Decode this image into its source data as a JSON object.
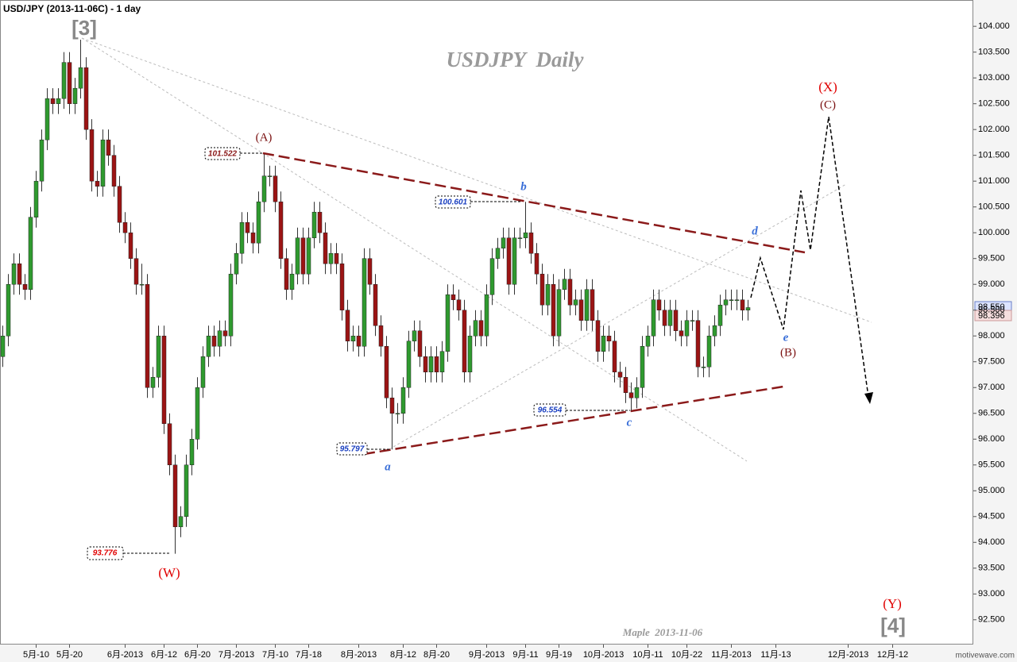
{
  "chart_data": {
    "type": "candlestick",
    "title": "USD/JPY (2013-11-06C) - 1 day",
    "watermark": "USDJPY  Daily",
    "signature": "Maple  2013-11-06",
    "brand": "motivewave.com",
    "up_color": "#2f9a2f",
    "down_color": "#9b1414",
    "xlim": [
      -0.5,
      174.5
    ],
    "xticks": [
      {
        "value": 6,
        "label": "5月-10"
      },
      {
        "value": 12,
        "label": "5月-20"
      },
      {
        "value": 22,
        "label": "6月-2013"
      },
      {
        "value": 29,
        "label": "6月-12"
      },
      {
        "value": 35,
        "label": "6月-20"
      },
      {
        "value": 42,
        "label": "7月-2013"
      },
      {
        "value": 49,
        "label": "7月-10"
      },
      {
        "value": 55,
        "label": "7月-18"
      },
      {
        "value": 64,
        "label": "8月-2013"
      },
      {
        "value": 72,
        "label": "8月-12"
      },
      {
        "value": 78,
        "label": "8月-20"
      },
      {
        "value": 87,
        "label": "9月-2013"
      },
      {
        "value": 94,
        "label": "9月-11"
      },
      {
        "value": 100,
        "label": "9月-19"
      },
      {
        "value": 108,
        "label": "10月-2013"
      },
      {
        "value": 116,
        "label": "10月-11"
      },
      {
        "value": 123,
        "label": "10月-22"
      },
      {
        "value": 131,
        "label": "11月-2013"
      },
      {
        "value": 139,
        "label": "11月-13"
      },
      {
        "value": 152,
        "label": "12月-2013"
      },
      {
        "value": 160,
        "label": "12月-12"
      }
    ],
    "ylim": [
      92.02,
      104.51
    ],
    "yticks": [
      {
        "value": 92.5,
        "label": "92.500"
      },
      {
        "value": 93,
        "label": "93.000"
      },
      {
        "value": 93.5,
        "label": "93.500"
      },
      {
        "value": 94,
        "label": "94.000"
      },
      {
        "value": 94.5,
        "label": "94.500"
      },
      {
        "value": 95,
        "label": "95.000"
      },
      {
        "value": 95.5,
        "label": "95.500"
      },
      {
        "value": 96,
        "label": "96.000"
      },
      {
        "value": 96.5,
        "label": "96.500"
      },
      {
        "value": 97,
        "label": "97.000"
      },
      {
        "value": 97.5,
        "label": "97.500"
      },
      {
        "value": 98,
        "label": "98.000"
      },
      {
        "value": 98.5,
        "label": "98.500"
      },
      {
        "value": 99,
        "label": "99.000"
      },
      {
        "value": 99.5,
        "label": "99.500"
      },
      {
        "value": 100,
        "label": "100.000"
      },
      {
        "value": 100.5,
        "label": "100.500"
      },
      {
        "value": 101,
        "label": "101.000"
      },
      {
        "value": 101.5,
        "label": "101.500"
      },
      {
        "value": 102,
        "label": "102.000"
      },
      {
        "value": 102.5,
        "label": "102.500"
      },
      {
        "value": 103,
        "label": "103.000"
      },
      {
        "value": 103.5,
        "label": "103.500"
      },
      {
        "value": 104,
        "label": "104.000"
      }
    ],
    "last_prices": [
      "98.550",
      "98.396"
    ],
    "price_boxes": [
      "101.522",
      "100.601",
      "96.554",
      "95.797",
      "93.776"
    ],
    "wave_labels": [
      "[3]",
      "(A)",
      "b",
      "(X)",
      "(C)",
      "d",
      "e",
      "(B)",
      "c",
      "a",
      "(W)",
      "(Y)",
      "[4]"
    ],
    "ohlc": [
      [
        97.6,
        98.2,
        97.4,
        98.0
      ],
      [
        98.0,
        99.2,
        97.8,
        99.0
      ],
      [
        99.0,
        99.6,
        98.8,
        99.4
      ],
      [
        99.4,
        99.6,
        98.8,
        99.0
      ],
      [
        99.0,
        99.2,
        98.7,
        98.9
      ],
      [
        98.9,
        100.5,
        98.7,
        100.3
      ],
      [
        100.3,
        101.2,
        100.1,
        101.0
      ],
      [
        101.0,
        102.0,
        100.8,
        101.8
      ],
      [
        101.8,
        102.8,
        101.6,
        102.6
      ],
      [
        102.6,
        102.8,
        102.3,
        102.5
      ],
      [
        102.5,
        102.8,
        102.3,
        102.6
      ],
      [
        102.6,
        103.5,
        102.4,
        103.3
      ],
      [
        103.3,
        103.5,
        102.3,
        102.5
      ],
      [
        102.5,
        103.0,
        102.3,
        102.8
      ],
      [
        102.8,
        103.74,
        102.6,
        103.2
      ],
      [
        103.2,
        103.4,
        101.8,
        102.0
      ],
      [
        102.0,
        102.2,
        100.8,
        101.0
      ],
      [
        101.0,
        101.2,
        100.7,
        100.9
      ],
      [
        100.9,
        102.0,
        100.7,
        101.8
      ],
      [
        101.8,
        102.0,
        101.3,
        101.5
      ],
      [
        101.5,
        101.7,
        100.7,
        100.9
      ],
      [
        100.9,
        101.1,
        100.0,
        100.2
      ],
      [
        100.2,
        100.4,
        99.8,
        100.0
      ],
      [
        100.0,
        100.2,
        99.3,
        99.5
      ],
      [
        99.5,
        99.7,
        98.8,
        99.0
      ],
      [
        99.0,
        99.4,
        98.8,
        99.0
      ],
      [
        99.0,
        99.2,
        96.8,
        97.0
      ],
      [
        97.0,
        97.4,
        96.8,
        97.2
      ],
      [
        97.2,
        98.2,
        97.0,
        98.0
      ],
      [
        98.0,
        98.2,
        96.1,
        96.3
      ],
      [
        96.3,
        96.5,
        95.3,
        95.5
      ],
      [
        95.5,
        95.7,
        93.78,
        94.3
      ],
      [
        94.3,
        94.7,
        94.1,
        94.5
      ],
      [
        94.5,
        95.7,
        94.3,
        95.5
      ],
      [
        95.5,
        96.2,
        95.3,
        96.0
      ],
      [
        96.0,
        97.2,
        95.8,
        97.0
      ],
      [
        97.0,
        97.8,
        96.8,
        97.6
      ],
      [
        97.6,
        98.2,
        97.4,
        98.0
      ],
      [
        98.0,
        98.2,
        97.6,
        97.8
      ],
      [
        97.8,
        98.3,
        97.6,
        98.1
      ],
      [
        98.1,
        98.3,
        97.8,
        98.0
      ],
      [
        98.0,
        99.4,
        97.8,
        99.2
      ],
      [
        99.2,
        99.8,
        99.0,
        99.6
      ],
      [
        99.6,
        100.4,
        99.4,
        100.2
      ],
      [
        100.2,
        100.4,
        99.8,
        100.0
      ],
      [
        100.0,
        100.2,
        99.6,
        99.8
      ],
      [
        99.8,
        100.8,
        99.6,
        100.6
      ],
      [
        100.6,
        101.52,
        100.4,
        101.1
      ],
      [
        101.1,
        101.3,
        100.9,
        101.1
      ],
      [
        101.1,
        101.3,
        100.4,
        100.6
      ],
      [
        100.6,
        100.8,
        99.3,
        99.5
      ],
      [
        99.5,
        99.7,
        98.7,
        98.9
      ],
      [
        98.9,
        99.4,
        98.7,
        99.2
      ],
      [
        99.2,
        100.1,
        99.0,
        99.9
      ],
      [
        99.9,
        100.1,
        99.0,
        99.2
      ],
      [
        99.2,
        100.1,
        99.0,
        99.9
      ],
      [
        99.9,
        100.6,
        99.7,
        100.4
      ],
      [
        100.4,
        100.6,
        99.8,
        100.0
      ],
      [
        100.0,
        100.2,
        99.2,
        99.4
      ],
      [
        99.4,
        99.8,
        99.2,
        99.6
      ],
      [
        99.6,
        99.8,
        99.2,
        99.4
      ],
      [
        99.4,
        99.6,
        98.3,
        98.5
      ],
      [
        98.5,
        98.7,
        97.7,
        97.9
      ],
      [
        97.9,
        98.2,
        97.7,
        98.0
      ],
      [
        98.0,
        98.2,
        97.6,
        97.8
      ],
      [
        97.8,
        99.7,
        97.6,
        99.5
      ],
      [
        99.5,
        99.7,
        98.8,
        99.0
      ],
      [
        99.0,
        99.2,
        98.0,
        98.2
      ],
      [
        98.2,
        98.4,
        97.6,
        97.8
      ],
      [
        97.8,
        98.0,
        96.6,
        96.8
      ],
      [
        96.8,
        97.0,
        95.8,
        96.5
      ],
      [
        96.5,
        96.7,
        96.3,
        96.5
      ],
      [
        96.5,
        97.2,
        96.3,
        97.0
      ],
      [
        97.0,
        98.1,
        96.8,
        97.9
      ],
      [
        97.9,
        98.3,
        97.7,
        98.1
      ],
      [
        98.1,
        98.3,
        97.4,
        97.6
      ],
      [
        97.6,
        97.8,
        97.1,
        97.3
      ],
      [
        97.3,
        97.8,
        97.1,
        97.6
      ],
      [
        97.6,
        97.8,
        97.1,
        97.3
      ],
      [
        97.3,
        97.9,
        97.1,
        97.7
      ],
      [
        97.7,
        99.0,
        97.5,
        98.8
      ],
      [
        98.8,
        99.0,
        98.5,
        98.7
      ],
      [
        98.7,
        98.9,
        98.3,
        98.5
      ],
      [
        98.5,
        98.7,
        97.1,
        97.3
      ],
      [
        97.3,
        98.2,
        97.1,
        98.0
      ],
      [
        98.0,
        98.5,
        97.8,
        98.3
      ],
      [
        98.3,
        98.5,
        97.8,
        98.0
      ],
      [
        98.0,
        99.0,
        97.8,
        98.8
      ],
      [
        98.8,
        99.7,
        98.6,
        99.5
      ],
      [
        99.5,
        99.9,
        99.3,
        99.7
      ],
      [
        99.7,
        100.1,
        99.5,
        99.9
      ],
      [
        99.9,
        100.1,
        98.8,
        99.0
      ],
      [
        99.0,
        100.1,
        98.8,
        99.9
      ],
      [
        99.9,
        100.1,
        99.7,
        99.9
      ],
      [
        99.9,
        100.6,
        99.7,
        100.0
      ],
      [
        100.0,
        100.2,
        99.4,
        99.6
      ],
      [
        99.6,
        99.8,
        99.0,
        99.2
      ],
      [
        99.2,
        99.4,
        98.4,
        98.6
      ],
      [
        98.6,
        99.2,
        98.4,
        99.0
      ],
      [
        99.0,
        99.2,
        97.8,
        98.0
      ],
      [
        98.0,
        99.1,
        97.8,
        98.9
      ],
      [
        98.9,
        99.3,
        98.7,
        99.1
      ],
      [
        99.1,
        99.3,
        98.4,
        98.6
      ],
      [
        98.6,
        98.9,
        98.4,
        98.7
      ],
      [
        98.7,
        98.9,
        98.1,
        98.3
      ],
      [
        98.3,
        99.1,
        98.1,
        98.9
      ],
      [
        98.9,
        99.1,
        98.1,
        98.3
      ],
      [
        98.3,
        98.5,
        97.5,
        97.7
      ],
      [
        97.7,
        98.2,
        97.5,
        98.0
      ],
      [
        98.0,
        98.2,
        97.7,
        97.9
      ],
      [
        97.9,
        98.1,
        97.1,
        97.3
      ],
      [
        97.3,
        97.5,
        97.0,
        97.2
      ],
      [
        97.2,
        97.4,
        96.7,
        96.9
      ],
      [
        96.9,
        97.1,
        96.55,
        96.8
      ],
      [
        96.8,
        97.2,
        96.6,
        97.0
      ],
      [
        97.0,
        98.0,
        96.8,
        97.8
      ],
      [
        97.8,
        98.2,
        97.6,
        98.0
      ],
      [
        98.0,
        98.9,
        97.8,
        98.7
      ],
      [
        98.7,
        98.9,
        98.3,
        98.5
      ],
      [
        98.5,
        98.7,
        98.0,
        98.2
      ],
      [
        98.2,
        98.7,
        98.0,
        98.5
      ],
      [
        98.5,
        98.7,
        97.9,
        98.1
      ],
      [
        98.1,
        98.3,
        97.8,
        98.0
      ],
      [
        98.0,
        98.5,
        97.8,
        98.3
      ],
      [
        98.3,
        98.5,
        98.1,
        98.3
      ],
      [
        98.3,
        98.5,
        97.2,
        97.4
      ],
      [
        97.4,
        97.6,
        97.2,
        97.4
      ],
      [
        97.4,
        98.2,
        97.2,
        98.0
      ],
      [
        98.0,
        98.4,
        97.8,
        98.2
      ],
      [
        98.2,
        98.8,
        98.0,
        98.6
      ],
      [
        98.6,
        98.9,
        98.4,
        98.7
      ],
      [
        98.7,
        98.9,
        98.5,
        98.7
      ],
      [
        98.7,
        98.9,
        98.5,
        98.7
      ],
      [
        98.7,
        98.9,
        98.3,
        98.5
      ],
      [
        98.5,
        98.7,
        98.3,
        98.55
      ]
    ]
  }
}
